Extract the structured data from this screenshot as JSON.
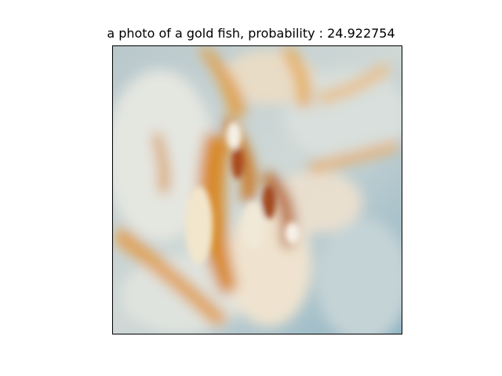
{
  "figure": {
    "title": "a photo of a gold fish, probability : 24.922754"
  },
  "image": {
    "subject": "blurred close-up of cream and orange petals",
    "palette": {
      "base": "#a9bcc4",
      "cream": "#efe3cf",
      "pale": "#dfe4e2",
      "orange": "#d88a2c",
      "deep_orange": "#b8641c",
      "teal": "#8fb3c3"
    }
  }
}
